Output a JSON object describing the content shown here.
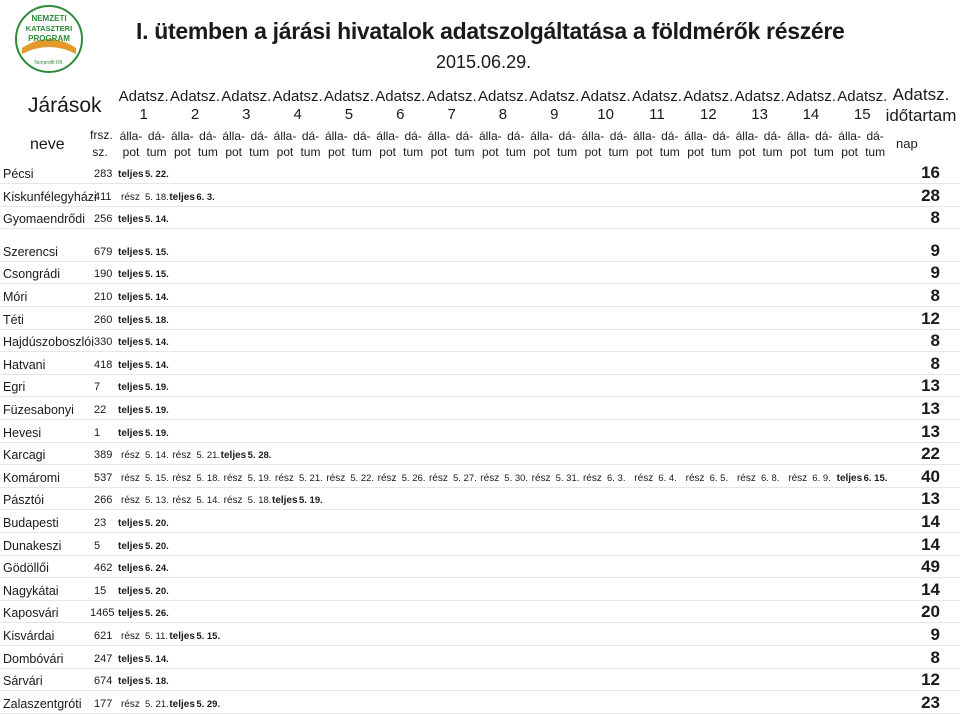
{
  "logo": {
    "line1": "NEMZETI",
    "line2": "KATASZTERI",
    "line3": "PROGRAM",
    "line4": "Nonprofit Kft.",
    "color": "#2e8b3a"
  },
  "header": {
    "title": "I. ütemben a járási hivatalok adatszolgáltatása a földmérők részére",
    "date": "2015.06.29.",
    "jarasok": "Járások",
    "neve": "neve",
    "frsz": [
      "frsz.",
      "sz."
    ],
    "adatsz": "Adatsz.",
    "nums": [
      "1",
      "2",
      "3",
      "4",
      "5",
      "6",
      "7",
      "8",
      "9",
      "10",
      "11",
      "12",
      "13",
      "14",
      "15"
    ],
    "allapot": [
      "álla-",
      "pot"
    ],
    "datum": [
      "dá-",
      "tum"
    ],
    "idotartam": [
      "Adatsz.",
      "időtartam"
    ],
    "nap": "nap"
  },
  "rows": [
    {
      "name": "Pécsi",
      "frsz": "283",
      "entries": [
        [
          "teljes",
          "5. 22."
        ]
      ],
      "dur": "16"
    },
    {
      "name": "Kiskunfélegyházi",
      "frsz": "411",
      "entries": [
        [
          "rész",
          "5. 18."
        ],
        [
          "teljes",
          "6. 3."
        ]
      ],
      "dur": "28"
    },
    {
      "name": "Gyomaendrődi",
      "frsz": "256",
      "entries": [
        [
          "teljes",
          "5. 14."
        ]
      ],
      "dur": "8"
    },
    {
      "name": "Szerencsi",
      "frsz": "679",
      "entries": [
        [
          "teljes",
          "5. 15."
        ]
      ],
      "dur": "9"
    },
    {
      "name": "Csongrádi",
      "frsz": "190",
      "entries": [
        [
          "teljes",
          "5. 15."
        ]
      ],
      "dur": "9"
    },
    {
      "name": "Móri",
      "frsz": "210",
      "entries": [
        [
          "teljes",
          "5. 14."
        ]
      ],
      "dur": "8"
    },
    {
      "name": "Téti",
      "frsz": "260",
      "entries": [
        [
          "teljes",
          "5. 18."
        ]
      ],
      "dur": "12"
    },
    {
      "name": "Hajdúszoboszlói",
      "frsz": "330",
      "entries": [
        [
          "teljes",
          "5. 14."
        ]
      ],
      "dur": "8"
    },
    {
      "name": "Hatvani",
      "frsz": "418",
      "entries": [
        [
          "teljes",
          "5. 14."
        ]
      ],
      "dur": "8"
    },
    {
      "name": "Egri",
      "frsz": "7",
      "entries": [
        [
          "teljes",
          "5. 19."
        ]
      ],
      "dur": "13"
    },
    {
      "name": "Füzesabonyi",
      "frsz": "22",
      "entries": [
        [
          "teljes",
          "5. 19."
        ]
      ],
      "dur": "13"
    },
    {
      "name": "Hevesi",
      "frsz": "1",
      "entries": [
        [
          "teljes",
          "5. 19."
        ]
      ],
      "dur": "13"
    },
    {
      "name": "Karcagi",
      "frsz": "389",
      "entries": [
        [
          "rész",
          "5. 14."
        ],
        [
          "rész",
          "5. 21."
        ],
        [
          "teljes",
          "5. 28."
        ]
      ],
      "dur": "22"
    },
    {
      "name": "Komáromi",
      "frsz": "537",
      "entries": [
        [
          "rész",
          "5. 15."
        ],
        [
          "rész",
          "5. 18."
        ],
        [
          "rész",
          "5. 19."
        ],
        [
          "rész",
          "5. 21."
        ],
        [
          "rész",
          "5. 22."
        ],
        [
          "rész",
          "5. 26."
        ],
        [
          "rész",
          "5. 27."
        ],
        [
          "rész",
          "5. 30."
        ],
        [
          "rész",
          "5. 31."
        ],
        [
          "rész",
          "6. 3."
        ],
        [
          "rész",
          "6. 4."
        ],
        [
          "rész",
          "6. 5."
        ],
        [
          "rész",
          "6. 8."
        ],
        [
          "rész",
          "6. 9."
        ],
        [
          "teljes",
          "6. 15."
        ]
      ],
      "dur": "40"
    },
    {
      "name": "Pásztói",
      "frsz": "266",
      "entries": [
        [
          "rész",
          "5. 13."
        ],
        [
          "rész",
          "5. 14."
        ],
        [
          "rész",
          "5. 18."
        ],
        [
          "teljes",
          "5. 19."
        ]
      ],
      "dur": "13"
    },
    {
      "name": "Budapesti",
      "frsz": "23",
      "entries": [
        [
          "teljes",
          "5. 20."
        ]
      ],
      "dur": "14"
    },
    {
      "name": "Dunakeszi",
      "frsz": "5",
      "entries": [
        [
          "teljes",
          "5. 20."
        ]
      ],
      "dur": "14"
    },
    {
      "name": "Gödöllői",
      "frsz": "462",
      "entries": [
        [
          "teljes",
          "6. 24."
        ]
      ],
      "dur": "49"
    },
    {
      "name": "Nagykátai",
      "frsz": "15",
      "entries": [
        [
          "teljes",
          "5. 20."
        ]
      ],
      "dur": "14"
    },
    {
      "name": "Kaposvári",
      "frsz": "1465",
      "entries": [
        [
          "teljes",
          "5. 26."
        ]
      ],
      "dur": "20"
    },
    {
      "name": "Kisvárdai",
      "frsz": "621",
      "entries": [
        [
          "rész",
          "5. 11."
        ],
        [
          "teljes",
          "5. 15."
        ]
      ],
      "dur": "9"
    },
    {
      "name": "Dombóvári",
      "frsz": "247",
      "entries": [
        [
          "teljes",
          "5. 14."
        ]
      ],
      "dur": "8"
    },
    {
      "name": "Sárvári",
      "frsz": "674",
      "entries": [
        [
          "teljes",
          "5. 18."
        ]
      ],
      "dur": "12"
    },
    {
      "name": "Zalaszentgróti",
      "frsz": "177",
      "entries": [
        [
          "rész",
          "5. 21."
        ],
        [
          "teljes",
          "5. 29."
        ]
      ],
      "dur": "23"
    }
  ]
}
